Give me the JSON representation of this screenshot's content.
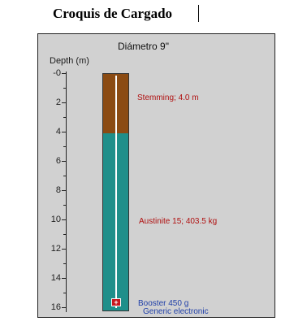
{
  "document": {
    "title": "Croquis de Cargado"
  },
  "figure": {
    "diameter_label": "Diámetro 9\"",
    "axis_title": "Depth (m)",
    "depth_ticks": [
      "-0",
      "2",
      "4",
      "6",
      "8",
      "10",
      "12",
      "14",
      "16"
    ],
    "stemming": {
      "label": "Stemming; 4.0 m",
      "from_m": 0,
      "to_m": 4.0,
      "color": "#8b4b13"
    },
    "explosive": {
      "label": "Austinite 15; 403.5 kg",
      "from_m": 4.0,
      "to_m": 16.0,
      "color": "#1f8f8a"
    },
    "booster": {
      "label_line1": "Booster 450 g",
      "label_line2": "Generic electronic",
      "depth_m": 15.7,
      "icon": "booster-icon",
      "color": "#c8161d"
    },
    "colors": {
      "background": "#d1d1d1",
      "label_red": "#b01010",
      "label_blue": "#1f3fa8",
      "wire": "#ffffff"
    }
  }
}
